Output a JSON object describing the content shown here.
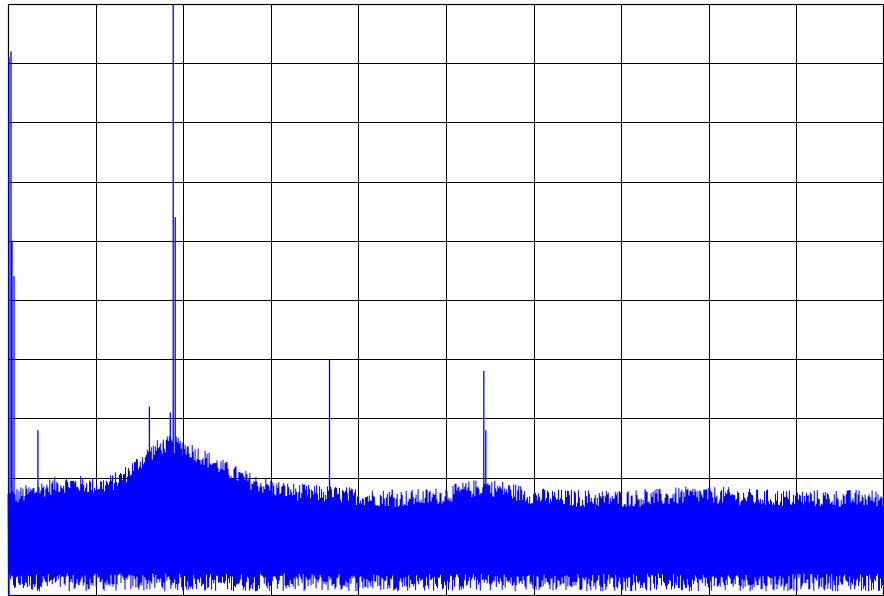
{
  "chart_data": {
    "type": "line",
    "title": "",
    "xlabel": "",
    "ylabel": "",
    "grid": true,
    "legend": "none",
    "xlim": [
      0,
      880
    ],
    "ylim": [
      0,
      100
    ],
    "grid_divisions": {
      "x": 10,
      "y": 10
    },
    "colors": {
      "background": "#ffffff",
      "grid": "#000000",
      "series": "#0000ff"
    },
    "series": [
      {
        "name": "",
        "baseline_value": 11,
        "noise_lower": 0.8,
        "noise_upper": 16.5,
        "noise_bumps": [
          {
            "x": 60,
            "value": 4
          },
          {
            "x": 140,
            "value": 5
          },
          {
            "x": 165,
            "value": 10
          },
          {
            "x": 210,
            "value": 6
          },
          {
            "x": 260,
            "value": 2
          },
          {
            "x": 320,
            "value": 1
          },
          {
            "x": 480,
            "value": 3
          },
          {
            "x": 700,
            "value": 1
          }
        ],
        "peaks": [
          {
            "x": 1,
            "value": 91
          },
          {
            "x": 3,
            "value": 92
          },
          {
            "x": 4,
            "value": 60
          },
          {
            "x": 6,
            "value": 54
          },
          {
            "x": 30,
            "value": 28
          },
          {
            "x": 142,
            "value": 32
          },
          {
            "x": 156,
            "value": 26
          },
          {
            "x": 163,
            "value": 31
          },
          {
            "x": 166,
            "value": 100
          },
          {
            "x": 168,
            "value": 64
          },
          {
            "x": 170,
            "value": 26
          },
          {
            "x": 172,
            "value": 24
          },
          {
            "x": 212,
            "value": 19
          },
          {
            "x": 323,
            "value": 40
          },
          {
            "x": 386,
            "value": 18
          },
          {
            "x": 478,
            "value": 38
          },
          {
            "x": 480,
            "value": 28
          },
          {
            "x": 482,
            "value": 19
          },
          {
            "x": 640,
            "value": 18
          },
          {
            "x": 798,
            "value": 14
          }
        ]
      }
    ]
  }
}
